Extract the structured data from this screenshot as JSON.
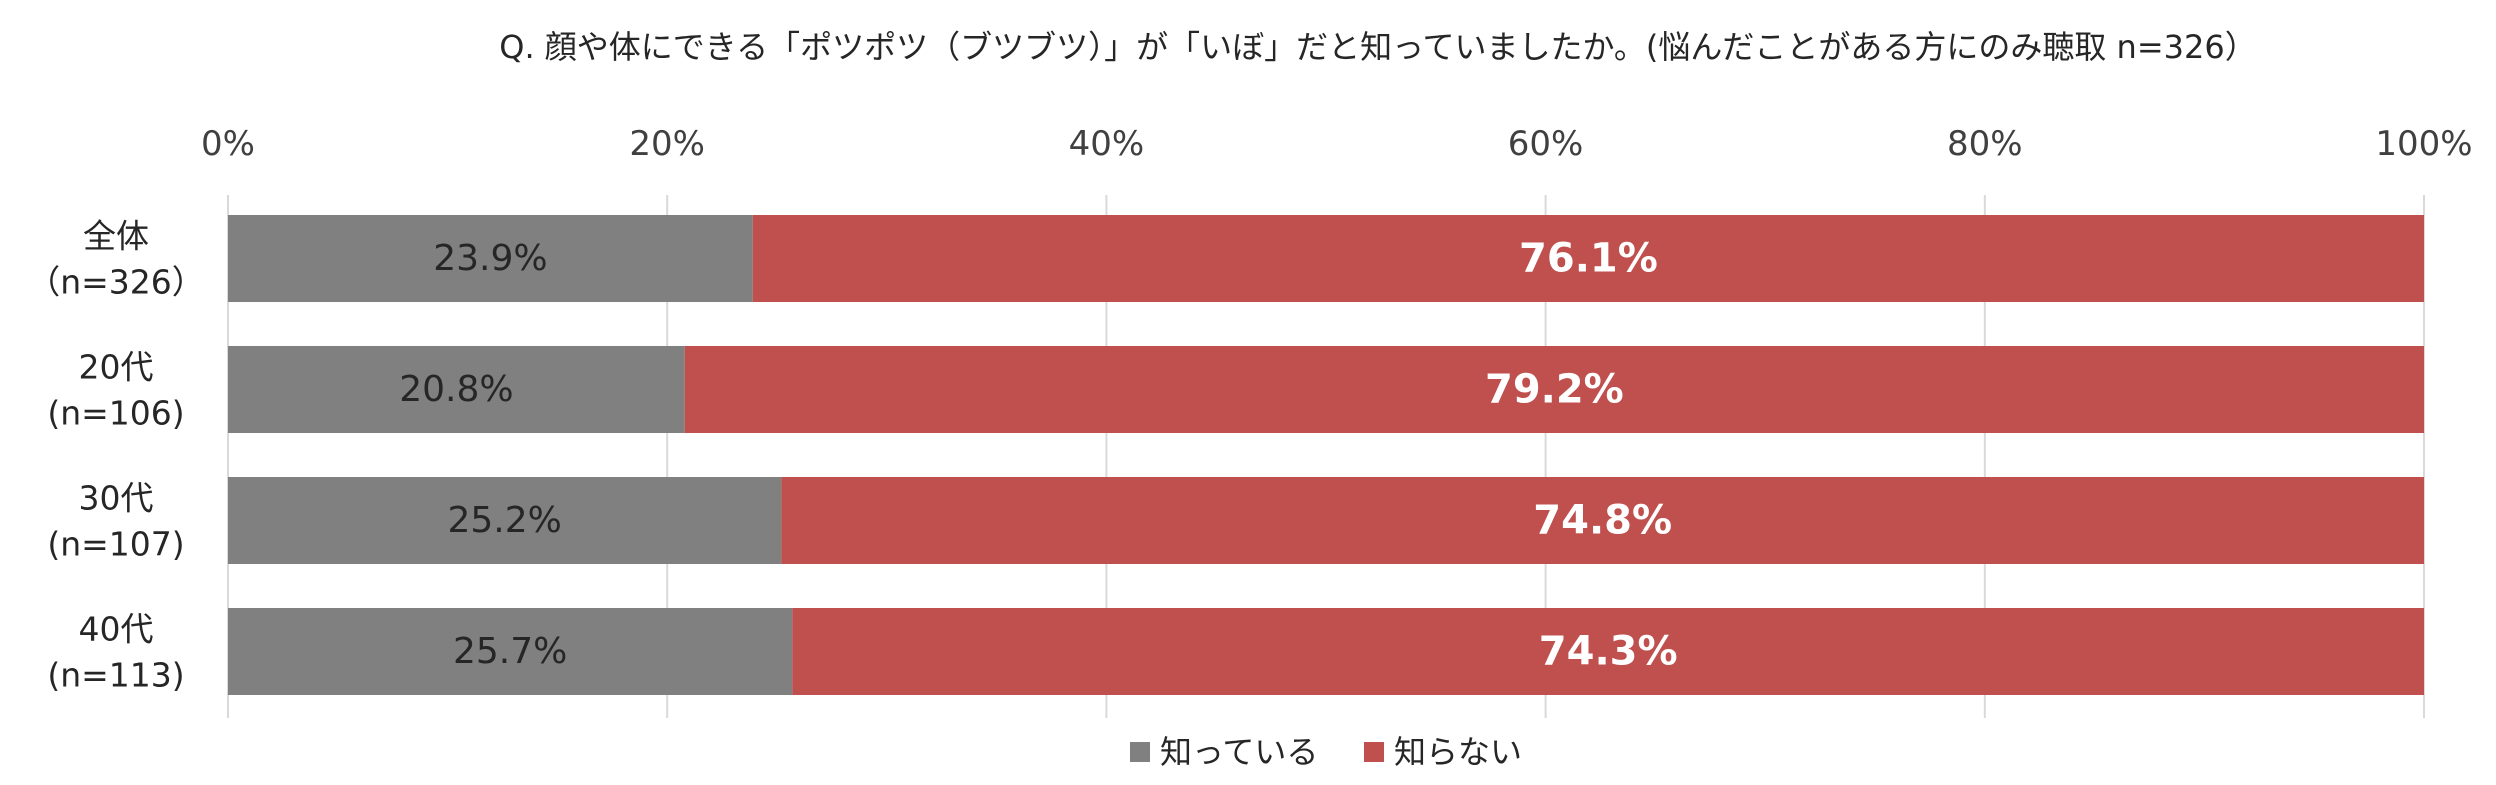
{
  "chart_data": {
    "type": "bar",
    "orientation": "horizontal",
    "stacked": "percent",
    "title": "Q. 顔や体にできる「ポツポツ（ブツブツ）」が「いぼ」だと知っていましたか。(悩んだことがある方にのみ聴取 n=326）",
    "categories": [
      [
        "全体",
        "（n=326）"
      ],
      [
        "20代",
        "(n=106)"
      ],
      [
        "30代",
        "(n=107)"
      ],
      [
        "40代",
        "(n=113)"
      ]
    ],
    "series": [
      {
        "name": "知っている",
        "color": "#808080",
        "values": [
          23.9,
          20.8,
          25.2,
          25.7
        ],
        "labels": [
          "23.9%",
          "20.8%",
          "25.2%",
          "25.7%"
        ]
      },
      {
        "name": "知らない",
        "color": "#C0504D",
        "values": [
          76.1,
          79.2,
          74.8,
          74.3
        ],
        "labels": [
          "76.1%",
          "79.2%",
          "74.8%",
          "74.3%"
        ]
      }
    ],
    "xlim": [
      0,
      100
    ],
    "x_ticks": [
      0,
      20,
      40,
      60,
      80,
      100
    ],
    "x_tick_labels": [
      "0%",
      "20%",
      "40%",
      "60%",
      "80%",
      "100%"
    ],
    "axis_position": "top",
    "grid": true,
    "grid_color": "#D9D9D9",
    "legend_position": "bottom"
  }
}
